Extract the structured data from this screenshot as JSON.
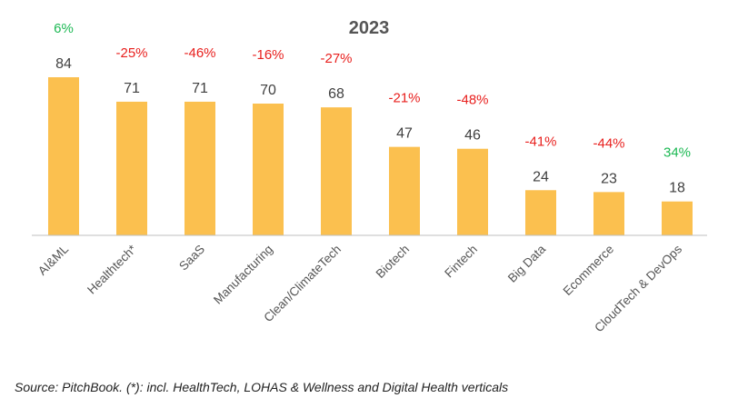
{
  "chart_data": {
    "type": "bar",
    "title": "2023",
    "categories": [
      "AI&ML",
      "Healthtech*",
      "SaaS",
      "Manufacturing",
      "Clean/ClimateTech",
      "Biotech",
      "Fintech",
      "Big Data",
      "Ecommerce",
      "CloudTech & DevOps"
    ],
    "values": [
      84,
      71,
      71,
      70,
      68,
      47,
      46,
      24,
      23,
      18
    ],
    "changes": [
      "6%",
      "-25%",
      "-46%",
      "-16%",
      "-27%",
      "-21%",
      "-48%",
      "-41%",
      "-44%",
      "34%"
    ],
    "ylim": [
      0,
      84
    ],
    "xlabel": "",
    "ylabel": "",
    "grid": false,
    "colors": {
      "bar": "#FBC04F",
      "positive": "#1DB954",
      "negative": "#E8201E",
      "axis": "#BFBFBF"
    }
  },
  "footer": {
    "source": "Source: PitchBook. (*): incl. HealthTech, LOHAS & Wellness and Digital Health verticals"
  }
}
